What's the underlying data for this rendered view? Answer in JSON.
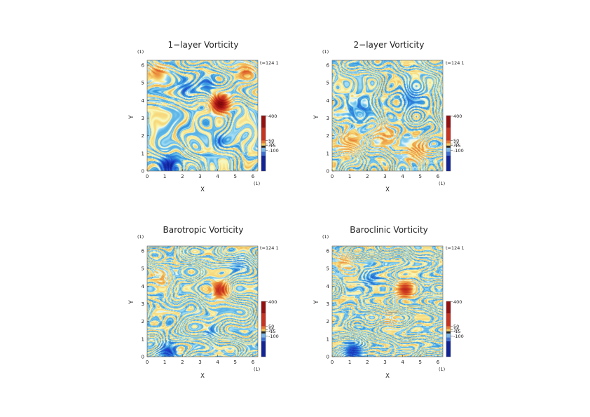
{
  "chart_data": [
    {
      "type": "heatmap",
      "title": "1−layer Vorticity",
      "xlabel": "X",
      "ylabel": "Y",
      "x_unit": "(1)",
      "y_unit": "(1)",
      "time_label": "t=124 1",
      "xlim": [
        0,
        6.28
      ],
      "ylim": [
        0,
        6.28
      ],
      "x_ticks": [
        "0",
        "1",
        "2",
        "3",
        "4",
        "5",
        "6"
      ],
      "y_ticks": [
        "0",
        "1",
        "2",
        "3",
        "4",
        "5",
        "6"
      ],
      "colorbar_ticks": [
        "400",
        "50",
        "15",
        "-15",
        "-100"
      ],
      "seed": 11,
      "vortices": [
        {
          "x": 4.15,
          "y": 3.8,
          "r": 0.3,
          "value": 430
        },
        {
          "x": 1.2,
          "y": 0.3,
          "r": 0.3,
          "value": -230
        },
        {
          "x": 0.6,
          "y": 5.5,
          "r": 0.3,
          "value": 120
        },
        {
          "x": 5.6,
          "y": 5.6,
          "r": 0.3,
          "value": 100
        },
        {
          "x": 2.2,
          "y": 4.7,
          "r": 0.3,
          "value": -80
        },
        {
          "x": 3.4,
          "y": 5.0,
          "r": 0.3,
          "value": -70
        },
        {
          "x": 4.1,
          "y": 1.7,
          "r": 0.22,
          "value": -90
        }
      ]
    },
    {
      "type": "heatmap",
      "title": "2−layer Vorticity",
      "xlabel": "X",
      "ylabel": "Y",
      "x_unit": "(1)",
      "y_unit": "(1)",
      "time_label": "t=124 1",
      "xlim": [
        0,
        6.28
      ],
      "ylim": [
        0,
        6.28
      ],
      "x_ticks": [
        "0",
        "1",
        "2",
        "3",
        "4",
        "5",
        "6"
      ],
      "y_ticks": [
        "0",
        "1",
        "2",
        "3",
        "4",
        "5",
        "6"
      ],
      "colorbar_ticks": [
        "400",
        "50",
        "15",
        "-15",
        "-100"
      ],
      "seed": 23,
      "vortices": [
        {
          "x": 4.8,
          "y": 1.2,
          "r": 0.45,
          "value": 70
        },
        {
          "x": 3.0,
          "y": 2.0,
          "r": 0.45,
          "value": 55
        },
        {
          "x": 1.5,
          "y": 3.5,
          "r": 0.45,
          "value": -60
        },
        {
          "x": 4.5,
          "y": 4.2,
          "r": 0.45,
          "value": -55
        },
        {
          "x": 1.0,
          "y": 1.6,
          "r": 0.45,
          "value": 60
        }
      ]
    },
    {
      "type": "heatmap",
      "title": "Barotropic Vorticity",
      "xlabel": "X",
      "ylabel": "Y",
      "x_unit": "(1)",
      "y_unit": "(1)",
      "time_label": "t=124 1",
      "xlim": [
        0,
        6.28
      ],
      "ylim": [
        0,
        6.28
      ],
      "x_ticks": [
        "0",
        "1",
        "2",
        "3",
        "4",
        "5",
        "6"
      ],
      "y_ticks": [
        "0",
        "1",
        "2",
        "3",
        "4",
        "5",
        "6"
      ],
      "colorbar_ticks": [
        "400",
        "50",
        "15",
        "-15",
        "-100"
      ],
      "seed": 37,
      "vortices": [
        {
          "x": 4.15,
          "y": 3.8,
          "r": 0.28,
          "value": 230
        },
        {
          "x": 1.2,
          "y": 0.3,
          "r": 0.3,
          "value": -140
        },
        {
          "x": 3.6,
          "y": 1.5,
          "r": 0.22,
          "value": -60
        },
        {
          "x": 0.8,
          "y": 4.5,
          "r": 0.35,
          "value": 40
        },
        {
          "x": 5.2,
          "y": 5.2,
          "r": 0.35,
          "value": -45
        }
      ]
    },
    {
      "type": "heatmap",
      "title": "Baroclinic Vorticity",
      "xlabel": "X",
      "ylabel": "Y",
      "x_unit": "(1)",
      "y_unit": "(1)",
      "time_label": "t=124 1",
      "xlim": [
        0,
        6.28
      ],
      "ylim": [
        0,
        6.28
      ],
      "x_ticks": [
        "0",
        "1",
        "2",
        "3",
        "4",
        "5",
        "6"
      ],
      "y_ticks": [
        "0",
        "1",
        "2",
        "3",
        "4",
        "5",
        "6"
      ],
      "colorbar_ticks": [
        "400",
        "50",
        "15",
        "-15",
        "-100"
      ],
      "seed": 53,
      "vortices": [
        {
          "x": 4.15,
          "y": 3.8,
          "r": 0.28,
          "value": 240
        },
        {
          "x": 1.2,
          "y": 0.3,
          "r": 0.3,
          "value": -160
        },
        {
          "x": 2.2,
          "y": 4.4,
          "r": 0.3,
          "value": -60
        },
        {
          "x": 0.7,
          "y": 5.4,
          "r": 0.3,
          "value": 50
        },
        {
          "x": 3.3,
          "y": 2.2,
          "r": 0.3,
          "value": 40
        }
      ]
    }
  ]
}
